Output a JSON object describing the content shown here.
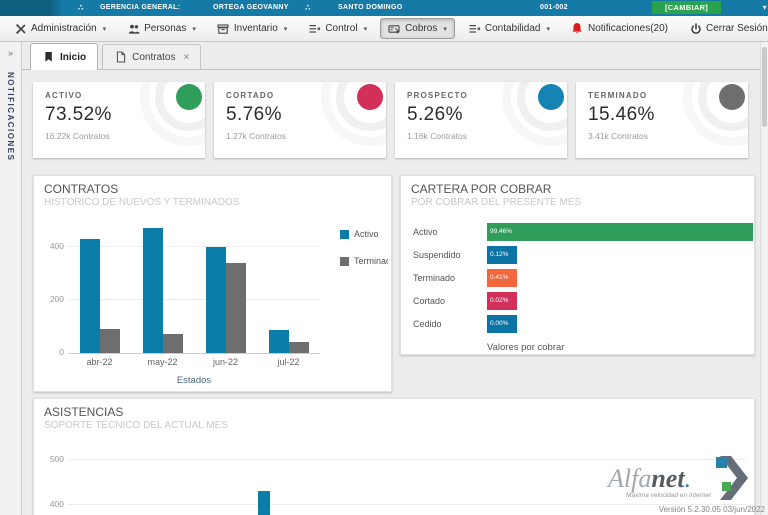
{
  "topbar": {
    "section_label": "GERENCIA GENERAL:",
    "user_name": "ORTEGA GEOVANNY",
    "branch": "SANTO DOMINGO",
    "code": "001-002",
    "change_label": "[CAMBIAR]",
    "dots_icon": "∴",
    "caret": "▾",
    "colors": {
      "bar_teal": "#157aa5",
      "change_green": "#2aa34f"
    }
  },
  "menu": {
    "items": [
      {
        "label": "Administración",
        "icon": "tools-icon",
        "caret": true,
        "active": false
      },
      {
        "label": "Personas",
        "icon": "people-icon",
        "caret": true,
        "active": false
      },
      {
        "label": "Inventario",
        "icon": "box-icon",
        "caret": true,
        "active": false
      },
      {
        "label": "Control",
        "icon": "list-icon",
        "caret": true,
        "active": false
      },
      {
        "label": "Cobros",
        "icon": "payments-icon",
        "caret": true,
        "active": true
      },
      {
        "label": "Contabilidad",
        "icon": "ledger-icon",
        "caret": true,
        "active": false
      },
      {
        "label": "Notificaciones(20)",
        "icon": "bell-icon",
        "caret": false,
        "active": false
      },
      {
        "label": "Cerrar Sesión",
        "icon": "power-icon",
        "caret": false,
        "active": false
      },
      {
        "label": "",
        "icon": "gear-icon",
        "caret": false,
        "active": false
      }
    ]
  },
  "sidebar": {
    "expand_icon": "»",
    "vertical_label": "NOTIFICACIONES"
  },
  "tabs": {
    "items": [
      {
        "label": "Inicio",
        "icon": "flag-icon",
        "active": true
      },
      {
        "label": "Contratos",
        "icon": "page-icon",
        "active": false,
        "close": "×"
      }
    ]
  },
  "cards": [
    {
      "title": "ACTIVO",
      "value": "73.52%",
      "subtitle": "16.22k Contratos",
      "color": "#2f9e5b"
    },
    {
      "title": "CORTADO",
      "value": "5.76%",
      "subtitle": "1.27k Contratos",
      "color": "#d23059"
    },
    {
      "title": "PROSPECTO",
      "value": "5.26%",
      "subtitle": "1.16k Contratos",
      "color": "#1583b4"
    },
    {
      "title": "TERMINADO",
      "value": "15.46%",
      "subtitle": "3.41k Contratos",
      "color": "#6e6e6e"
    }
  ],
  "chart_data": [
    {
      "type": "bar",
      "title": "CONTRATOS",
      "subtitle": "HISTORICO DE NUEVOS Y TERMINADOS",
      "xlabel": "Estados",
      "categories": [
        "abr-22",
        "may-22",
        "jun-22",
        "jul-22"
      ],
      "series": [
        {
          "name": "Activo",
          "color": "#0c7ca8",
          "values": [
            430,
            470,
            400,
            85
          ]
        },
        {
          "name": "Terminado",
          "color": "#6e6e6e",
          "values": [
            90,
            70,
            340,
            40
          ]
        }
      ],
      "yticks": [
        0,
        200,
        400
      ],
      "ylim": [
        0,
        520
      ],
      "grid": true,
      "legend_position": "right"
    },
    {
      "type": "bar",
      "orientation": "horizontal",
      "title": "CARTERA POR COBRAR",
      "subtitle": "POR COBRAR DEL PRESENTE MES",
      "xlabel": "Valores por cobrar",
      "categories": [
        "Activo",
        "Suspendido",
        "Terminado",
        "Cortado",
        "Cedido"
      ],
      "values": [
        99.46,
        0.12,
        0.41,
        0.02,
        0.0
      ],
      "value_labels": [
        "99.46%",
        "0.12%",
        "0.41%",
        "0.02%",
        "0.00%"
      ],
      "colors": [
        "#2f9e5b",
        "#0c74a4",
        "#f2683c",
        "#d23059",
        "#0c74a4"
      ]
    },
    {
      "type": "bar",
      "title": "ASISTENCIAS",
      "subtitle": "SOPORTE TÉCNICO DEL ACTUAL MES",
      "yticks": [
        400,
        500
      ],
      "series": [
        {
          "name": "Asistencias",
          "color": "#0c7ca8",
          "values": [
            430
          ]
        }
      ],
      "note": "chart clipped by viewport bottom; only one bar and gridlines 400/500 visible"
    }
  ],
  "footer": {
    "logo_name_light": "Alfa",
    "logo_name_dark": "net",
    "logo_tagline": "Máxima velocidad en Internet",
    "version": "Versión 5.2.30.05 03/jun/2022"
  }
}
